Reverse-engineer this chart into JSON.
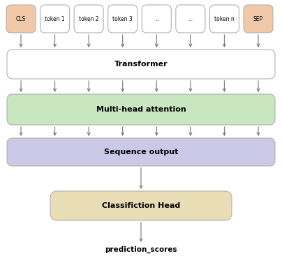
{
  "fig_width": 4.04,
  "fig_height": 3.8,
  "dpi": 100,
  "background": "#ffffff",
  "tokens": [
    "CLS",
    "token 1",
    "token 2",
    "token 3",
    "...",
    "...",
    "token n",
    "SEP"
  ],
  "token_box_color_special": "#f2c9a8",
  "token_box_color_normal": "#ffffff",
  "token_box_edge_color": "#b0b0b0",
  "transformer_box": {
    "label": "Transformer",
    "color": "#ffffff",
    "edge": "#b0b0b0"
  },
  "attention_box": {
    "label": "Multi-head attention",
    "color": "#c8e6c0",
    "edge": "#b0b0b0"
  },
  "sequence_box": {
    "label": "Sequence output",
    "color": "#ccc8e8",
    "edge": "#b0b0b0"
  },
  "classif_box": {
    "label": "Classifiction Head",
    "color": "#e8ddb5",
    "edge": "#b0b0b0"
  },
  "output_label": "prediction_scores",
  "arrow_color": "#777777",
  "text_color": "#000000",
  "label_fontsize": 8,
  "token_fontsize": 5.5,
  "output_fontsize": 7.5
}
